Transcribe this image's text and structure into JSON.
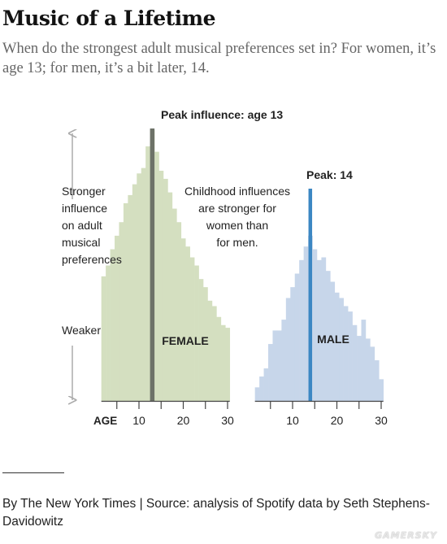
{
  "header": {
    "title": "Music of a Lifetime",
    "subtitle": "When do the strongest adult musical preferences set in? For women, it’s age 13; for men, it’s a bit later, 14."
  },
  "chart_data": [
    {
      "type": "bar",
      "name": "FEMALE",
      "x": [
        2,
        3,
        4,
        5,
        6,
        7,
        8,
        9,
        10,
        11,
        12,
        13,
        14,
        15,
        16,
        17,
        18,
        19,
        20,
        21,
        22,
        23,
        24,
        25,
        26,
        27,
        28,
        29,
        30
      ],
      "values": [
        0.46,
        0.5,
        0.56,
        0.61,
        0.66,
        0.73,
        0.76,
        0.8,
        0.84,
        0.86,
        0.94,
        1.0,
        0.92,
        0.85,
        0.82,
        0.77,
        0.71,
        0.66,
        0.6,
        0.57,
        0.53,
        0.5,
        0.45,
        0.42,
        0.37,
        0.35,
        0.31,
        0.28,
        0.27
      ],
      "peak_age": 13,
      "peak_label": "Peak influence: age 13",
      "label": "FEMALE",
      "color": "#d4dfc0",
      "peak_line_color": "#6d7268",
      "xlim": [
        0,
        30
      ]
    },
    {
      "type": "bar",
      "name": "MALE",
      "x": [
        2,
        3,
        4,
        5,
        6,
        7,
        8,
        9,
        10,
        11,
        12,
        13,
        14,
        15,
        16,
        17,
        18,
        19,
        20,
        21,
        22,
        23,
        24,
        25,
        26,
        27,
        28,
        29,
        30
      ],
      "values": [
        0.05,
        0.09,
        0.12,
        0.21,
        0.26,
        0.26,
        0.3,
        0.38,
        0.42,
        0.47,
        0.52,
        0.57,
        0.61,
        0.56,
        0.52,
        0.53,
        0.48,
        0.44,
        0.4,
        0.38,
        0.35,
        0.33,
        0.28,
        0.24,
        0.3,
        0.23,
        0.2,
        0.15,
        0.08
      ],
      "peak_age": 14,
      "peak_label": "Peak: 14",
      "label": "MALE",
      "color": "#c7d6ea",
      "peak_line_color": "#3c87c3",
      "xlim": [
        0,
        30
      ]
    }
  ],
  "axis": {
    "age_label": "AGE",
    "ticks": [
      10,
      20,
      30
    ],
    "ylabel_lines": [
      "Stronger",
      "influence",
      "on adult",
      "musical",
      "preferences"
    ],
    "weaker_label": "Weaker"
  },
  "annotation_lines": [
    "Childhood influences",
    "are stronger for",
    "women than",
    "for men."
  ],
  "footer": {
    "credit": "By The New York Times | Source: analysis of Spotify data by Seth Stephens-Davidowitz",
    "watermark": "GAMERSKY"
  }
}
